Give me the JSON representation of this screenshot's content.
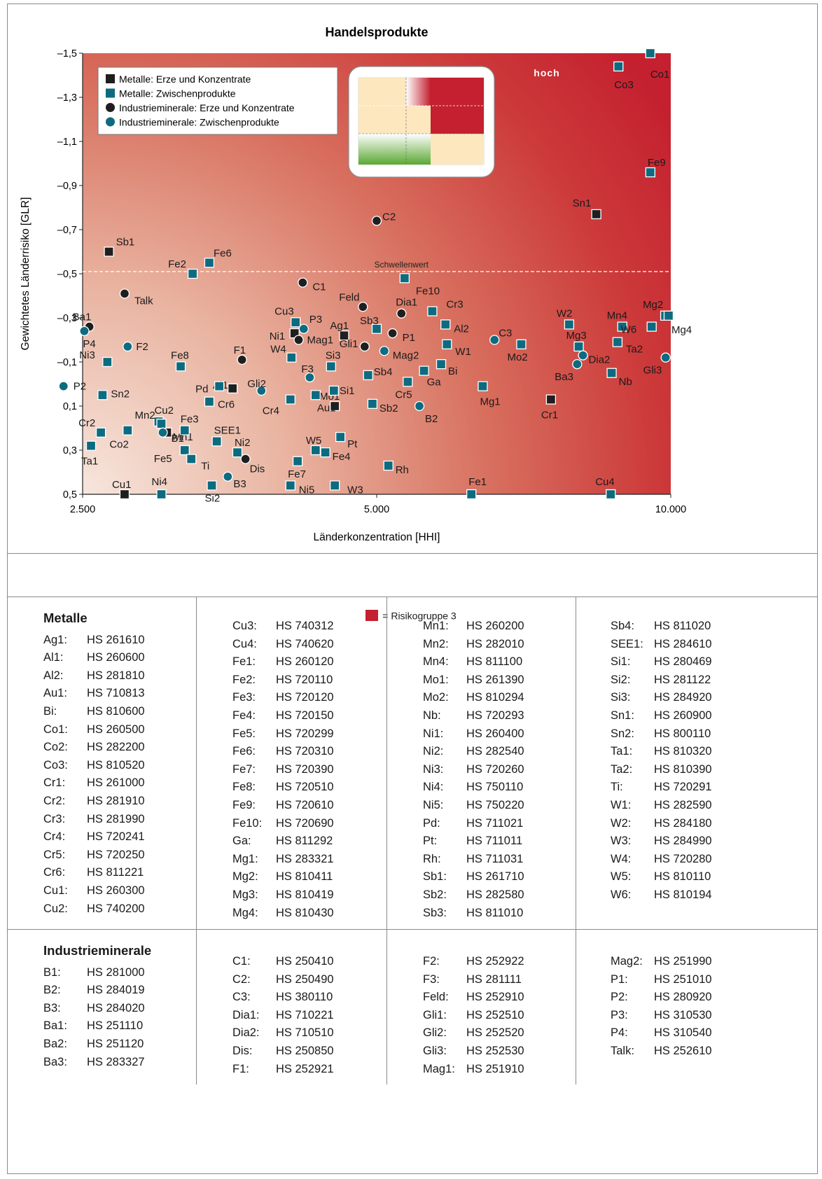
{
  "chart_data": {
    "type": "scatter",
    "title": "Handelsprodukte",
    "xlabel": "Länderkonzentration [HHI]",
    "ylabel": "Gewichtetes Länderrisiko [GLR]",
    "xlim": [
      2500,
      10000
    ],
    "ylim": [
      0.5,
      -1.5
    ],
    "x_ticks": [
      "2.500",
      "5.000",
      "10.000"
    ],
    "y_ticks": [
      "–1,5",
      "–1,3",
      "–1,1",
      "–0,9",
      "–0,7",
      "–0,5",
      "–0,3",
      "–0,1",
      "0,1",
      "0,3",
      "0,5"
    ],
    "threshold": {
      "label": "Schwellenwert",
      "value": -0.51
    },
    "zone_label": "hoch",
    "risk_color": "#c4202f",
    "legend_placement": "top-left",
    "series": [
      {
        "name": "Metalle: Erze und Konzentrate",
        "marker": "square",
        "color": "#1f1f1f",
        "points": [
          {
            "label": "Sb1",
            "x": 2660,
            "y": -0.6
          },
          {
            "label": "Cu1",
            "x": 2760,
            "y": 0.5
          },
          {
            "label": "Mn1",
            "x": 3050,
            "y": 0.22
          },
          {
            "label": "Al1",
            "x": 3560,
            "y": 0.02
          },
          {
            "label": "Ni1",
            "x": 4120,
            "y": -0.23
          },
          {
            "label": "Ag1",
            "x": 4630,
            "y": -0.22
          },
          {
            "label": "Mo1",
            "x": 4530,
            "y": 0.1
          },
          {
            "label": "Sn1",
            "x": 8390,
            "y": -0.77
          },
          {
            "label": "Cr1",
            "x": 7540,
            "y": 0.07
          }
        ]
      },
      {
        "name": "Metalle: Zwischenprodukte",
        "marker": "square",
        "color": "#0d6b80",
        "points": [
          {
            "label": "Co1",
            "x": 9530,
            "y": -1.5
          },
          {
            "label": "Co3",
            "x": 8840,
            "y": -1.44
          },
          {
            "label": "Fe9",
            "x": 9530,
            "y": -0.96
          },
          {
            "label": "Fe6",
            "x": 3370,
            "y": -0.55
          },
          {
            "label": "Fe2",
            "x": 3240,
            "y": -0.5
          },
          {
            "label": "Fe10",
            "x": 5340,
            "y": -0.48
          },
          {
            "label": "Cu3",
            "x": 4130,
            "y": -0.28
          },
          {
            "label": "Cr3",
            "x": 5700,
            "y": -0.33
          },
          {
            "label": "Al2",
            "x": 5880,
            "y": -0.27
          },
          {
            "label": "Sb3",
            "x": 5000,
            "y": -0.25
          },
          {
            "label": "W2",
            "x": 7870,
            "y": -0.27
          },
          {
            "label": "Mn4",
            "x": 8920,
            "y": -0.26
          },
          {
            "label": "Mg2",
            "x": 9870,
            "y": -0.31
          },
          {
            "label": "Mg4",
            "x": 9950,
            "y": -0.31
          },
          {
            "label": "W6",
            "x": 9560,
            "y": -0.26
          },
          {
            "label": "Ta2",
            "x": 8820,
            "y": -0.19
          },
          {
            "label": "Mg3",
            "x": 8050,
            "y": -0.17
          },
          {
            "label": "Mo2",
            "x": 7030,
            "y": -0.18
          },
          {
            "label": "W1",
            "x": 5900,
            "y": -0.18
          },
          {
            "label": "W4",
            "x": 4090,
            "y": -0.12
          },
          {
            "label": "Fe8",
            "x": 3150,
            "y": -0.08
          },
          {
            "label": "Si3",
            "x": 4490,
            "y": -0.08
          },
          {
            "label": "Bi",
            "x": 5820,
            "y": -0.09
          },
          {
            "label": "Sb4",
            "x": 4900,
            "y": -0.04
          },
          {
            "label": "Ga",
            "x": 5590,
            "y": -0.06
          },
          {
            "label": "Cr5",
            "x": 5380,
            "y": -0.01
          },
          {
            "label": "Nb",
            "x": 8700,
            "y": -0.05
          },
          {
            "label": "Mg1",
            "x": 6420,
            "y": 0.01
          },
          {
            "label": "Ni3",
            "x": 2650,
            "y": -0.1
          },
          {
            "label": "Sn2",
            "x": 2620,
            "y": 0.05
          },
          {
            "label": "Pd",
            "x": 3450,
            "y": 0.01
          },
          {
            "label": "Cr6",
            "x": 3370,
            "y": 0.08
          },
          {
            "label": "Cr4",
            "x": 4080,
            "y": 0.07
          },
          {
            "label": "Au1",
            "x": 4330,
            "y": 0.05
          },
          {
            "label": "Si1",
            "x": 4520,
            "y": 0.03
          },
          {
            "label": "Sb2",
            "x": 4950,
            "y": 0.09
          },
          {
            "label": "Cu2",
            "x": 2990,
            "y": 0.17
          },
          {
            "label": "Mn2",
            "x": 3010,
            "y": 0.18
          },
          {
            "label": "Fe3",
            "x": 3180,
            "y": 0.21
          },
          {
            "label": "Cr2",
            "x": 2610,
            "y": 0.22
          },
          {
            "label": "Co2",
            "x": 2780,
            "y": 0.21
          },
          {
            "label": "SEE1",
            "x": 3430,
            "y": 0.26
          },
          {
            "label": "Ta1",
            "x": 2550,
            "y": 0.28
          },
          {
            "label": "Fe5",
            "x": 3180,
            "y": 0.3
          },
          {
            "label": "Ti",
            "x": 3230,
            "y": 0.34
          },
          {
            "label": "Ni2",
            "x": 3600,
            "y": 0.31
          },
          {
            "label": "Pt",
            "x": 4590,
            "y": 0.24
          },
          {
            "label": "W5",
            "x": 4330,
            "y": 0.3
          },
          {
            "label": "Fe4",
            "x": 4430,
            "y": 0.31
          },
          {
            "label": "Fe7",
            "x": 4150,
            "y": 0.35
          },
          {
            "label": "Rh",
            "x": 5140,
            "y": 0.37
          },
          {
            "label": "Ni4",
            "x": 3010,
            "y": 0.5
          },
          {
            "label": "Si2",
            "x": 3390,
            "y": 0.46
          },
          {
            "label": "Ni5",
            "x": 4080,
            "y": 0.46
          },
          {
            "label": "W3",
            "x": 4530,
            "y": 0.46
          },
          {
            "label": "Fe1",
            "x": 6250,
            "y": 0.5
          },
          {
            "label": "Cu4",
            "x": 8680,
            "y": 0.5
          }
        ]
      },
      {
        "name": "Industrieminerale: Erze und Konzentrate",
        "marker": "circle",
        "color": "#1f1f1f",
        "points": [
          {
            "label": "C2",
            "x": 5000,
            "y": -0.74
          },
          {
            "label": "C1",
            "x": 4200,
            "y": -0.46
          },
          {
            "label": "Talk",
            "x": 2760,
            "y": -0.41
          },
          {
            "label": "Feld",
            "x": 4840,
            "y": -0.35
          },
          {
            "label": "Dia1",
            "x": 5300,
            "y": -0.32
          },
          {
            "label": "Ba1",
            "x": 2540,
            "y": -0.26
          },
          {
            "label": "P1",
            "x": 5190,
            "y": -0.23
          },
          {
            "label": "Mag1",
            "x": 4160,
            "y": -0.2
          },
          {
            "label": "Gli1",
            "x": 4860,
            "y": -0.17
          },
          {
            "label": "F1",
            "x": 3640,
            "y": -0.11
          },
          {
            "label": "Dis",
            "x": 3670,
            "y": 0.34
          }
        ]
      },
      {
        "name": "Industrieminerale: Zwischenprodukte",
        "marker": "circle",
        "color": "#0d6b80",
        "points": [
          {
            "label": "P3",
            "x": 4210,
            "y": -0.25
          },
          {
            "label": "P4",
            "x": 2510,
            "y": -0.24
          },
          {
            "label": "C3",
            "x": 6600,
            "y": -0.2
          },
          {
            "label": "F2",
            "x": 2780,
            "y": -0.17
          },
          {
            "label": "Mag2",
            "x": 5090,
            "y": -0.15
          },
          {
            "label": "Dia2",
            "x": 8130,
            "y": -0.13
          },
          {
            "label": "Ba3",
            "x": 8020,
            "y": -0.09
          },
          {
            "label": "F3",
            "x": 4270,
            "y": -0.03
          },
          {
            "label": "Gli2",
            "x": 3810,
            "y": 0.03
          },
          {
            "label": "Gli3",
            "x": 9880,
            "y": -0.12
          },
          {
            "label": "P2",
            "x": 2390,
            "y": 0.01
          },
          {
            "label": "B1",
            "x": 3020,
            "y": 0.22
          },
          {
            "label": "B2",
            "x": 5530,
            "y": 0.1
          },
          {
            "label": "B3",
            "x": 3520,
            "y": 0.42
          }
        ]
      }
    ]
  },
  "risk_legend": {
    "label": "= Risikogruppe 3",
    "color": "#c4202f"
  },
  "metalle": {
    "heading": "Metalle",
    "columns": [
      [
        [
          "Ag1:",
          "HS 261610"
        ],
        [
          "Al1:",
          "HS 260600"
        ],
        [
          "Al2:",
          "HS 281810"
        ],
        [
          "Au1:",
          "HS 710813"
        ],
        [
          "Bi:",
          "HS 810600"
        ],
        [
          "Co1:",
          "HS 260500"
        ],
        [
          "Co2:",
          "HS 282200"
        ],
        [
          "Co3:",
          "HS 810520"
        ],
        [
          "Cr1:",
          "HS 261000"
        ],
        [
          "Cr2:",
          "HS 281910"
        ],
        [
          "Cr3:",
          "HS 281990"
        ],
        [
          "Cr4:",
          "HS 720241"
        ],
        [
          "Cr5:",
          "HS 720250"
        ],
        [
          "Cr6:",
          "HS 811221"
        ],
        [
          "Cu1:",
          "HS 260300"
        ],
        [
          "Cu2:",
          "HS 740200"
        ]
      ],
      [
        [
          "Cu3:",
          "HS 740312"
        ],
        [
          "Cu4:",
          "HS 740620"
        ],
        [
          "Fe1:",
          "HS 260120"
        ],
        [
          "Fe2:",
          "HS 720110"
        ],
        [
          "Fe3:",
          "HS 720120"
        ],
        [
          "Fe4:",
          "HS 720150"
        ],
        [
          "Fe5:",
          "HS 720299"
        ],
        [
          "Fe6:",
          "HS 720310"
        ],
        [
          "Fe7:",
          "HS 720390"
        ],
        [
          "Fe8:",
          "HS 720510"
        ],
        [
          "Fe9:",
          "HS 720610"
        ],
        [
          "Fe10:",
          "HS 720690"
        ],
        [
          "Ga:",
          "HS 811292"
        ],
        [
          "Mg1:",
          "HS 283321"
        ],
        [
          "Mg2:",
          "HS 810411"
        ],
        [
          "Mg3:",
          "HS 810419"
        ],
        [
          "Mg4:",
          "HS 810430"
        ]
      ],
      [
        [
          "Mn1:",
          "HS 260200"
        ],
        [
          "Mn2:",
          "HS 282010"
        ],
        [
          "Mn4:",
          "HS 811100"
        ],
        [
          "Mo1:",
          "HS 261390"
        ],
        [
          "Mo2:",
          "HS 810294"
        ],
        [
          "Nb:",
          "HS 720293"
        ],
        [
          "Ni1:",
          "HS 260400"
        ],
        [
          "Ni2:",
          "HS 282540"
        ],
        [
          "Ni3:",
          "HS 720260"
        ],
        [
          "Ni4:",
          "HS 750110"
        ],
        [
          "Ni5:",
          "HS 750220"
        ],
        [
          "Pd:",
          "HS 711021"
        ],
        [
          "Pt:",
          "HS 711011"
        ],
        [
          "Rh:",
          "HS 711031"
        ],
        [
          "Sb1:",
          "HS 261710"
        ],
        [
          "Sb2:",
          "HS 282580"
        ],
        [
          "Sb3:",
          "HS 811010"
        ]
      ],
      [
        [
          "Sb4:",
          "HS 811020"
        ],
        [
          "SEE1:",
          "HS 284610"
        ],
        [
          "Si1:",
          "HS 280469"
        ],
        [
          "Si2:",
          "HS 281122"
        ],
        [
          "Si3:",
          "HS 284920"
        ],
        [
          "Sn1:",
          "HS 260900"
        ],
        [
          "Sn2:",
          "HS 800110"
        ],
        [
          "Ta1:",
          "HS 810320"
        ],
        [
          "Ta2:",
          "HS 810390"
        ],
        [
          "Ti:",
          "HS 720291"
        ],
        [
          "W1:",
          "HS 282590"
        ],
        [
          "W2:",
          "HS 284180"
        ],
        [
          "W3:",
          "HS 284990"
        ],
        [
          "W4:",
          "HS 720280"
        ],
        [
          "W5:",
          "HS 810110"
        ],
        [
          "W6:",
          "HS 810194"
        ]
      ]
    ]
  },
  "industrieminerale": {
    "heading": "Industrieminerale",
    "columns": [
      [
        [
          "B1:",
          "HS 281000"
        ],
        [
          "B2:",
          "HS 284019"
        ],
        [
          "B3:",
          "HS 284020"
        ],
        [
          "Ba1:",
          "HS 251110"
        ],
        [
          "Ba2:",
          "HS 251120"
        ],
        [
          "Ba3:",
          "HS 283327"
        ]
      ],
      [
        [
          "C1:",
          "HS 250410"
        ],
        [
          "C2:",
          "HS 250490"
        ],
        [
          "C3:",
          "HS 380110"
        ],
        [
          "Dia1:",
          "HS 710221"
        ],
        [
          "Dia2:",
          "HS 710510"
        ],
        [
          "Dis:",
          "HS 250850"
        ],
        [
          "F1:",
          "HS 252921"
        ]
      ],
      [
        [
          "F2:",
          "HS 252922"
        ],
        [
          "F3:",
          "HS 281111"
        ],
        [
          "Feld:",
          "HS 252910"
        ],
        [
          "Gli1:",
          "HS 252510"
        ],
        [
          "Gli2:",
          "HS 252520"
        ],
        [
          "Gli3:",
          "HS 252530"
        ],
        [
          "Mag1:",
          "HS 251910"
        ]
      ],
      [
        [
          "Mag2:",
          "HS 251990"
        ],
        [
          "P1:",
          "HS 251010"
        ],
        [
          "P2:",
          "HS 280920"
        ],
        [
          "P3:",
          "HS 310530"
        ],
        [
          "P4:",
          "HS 310540"
        ],
        [
          "Talk:",
          "HS 252610"
        ]
      ]
    ]
  }
}
